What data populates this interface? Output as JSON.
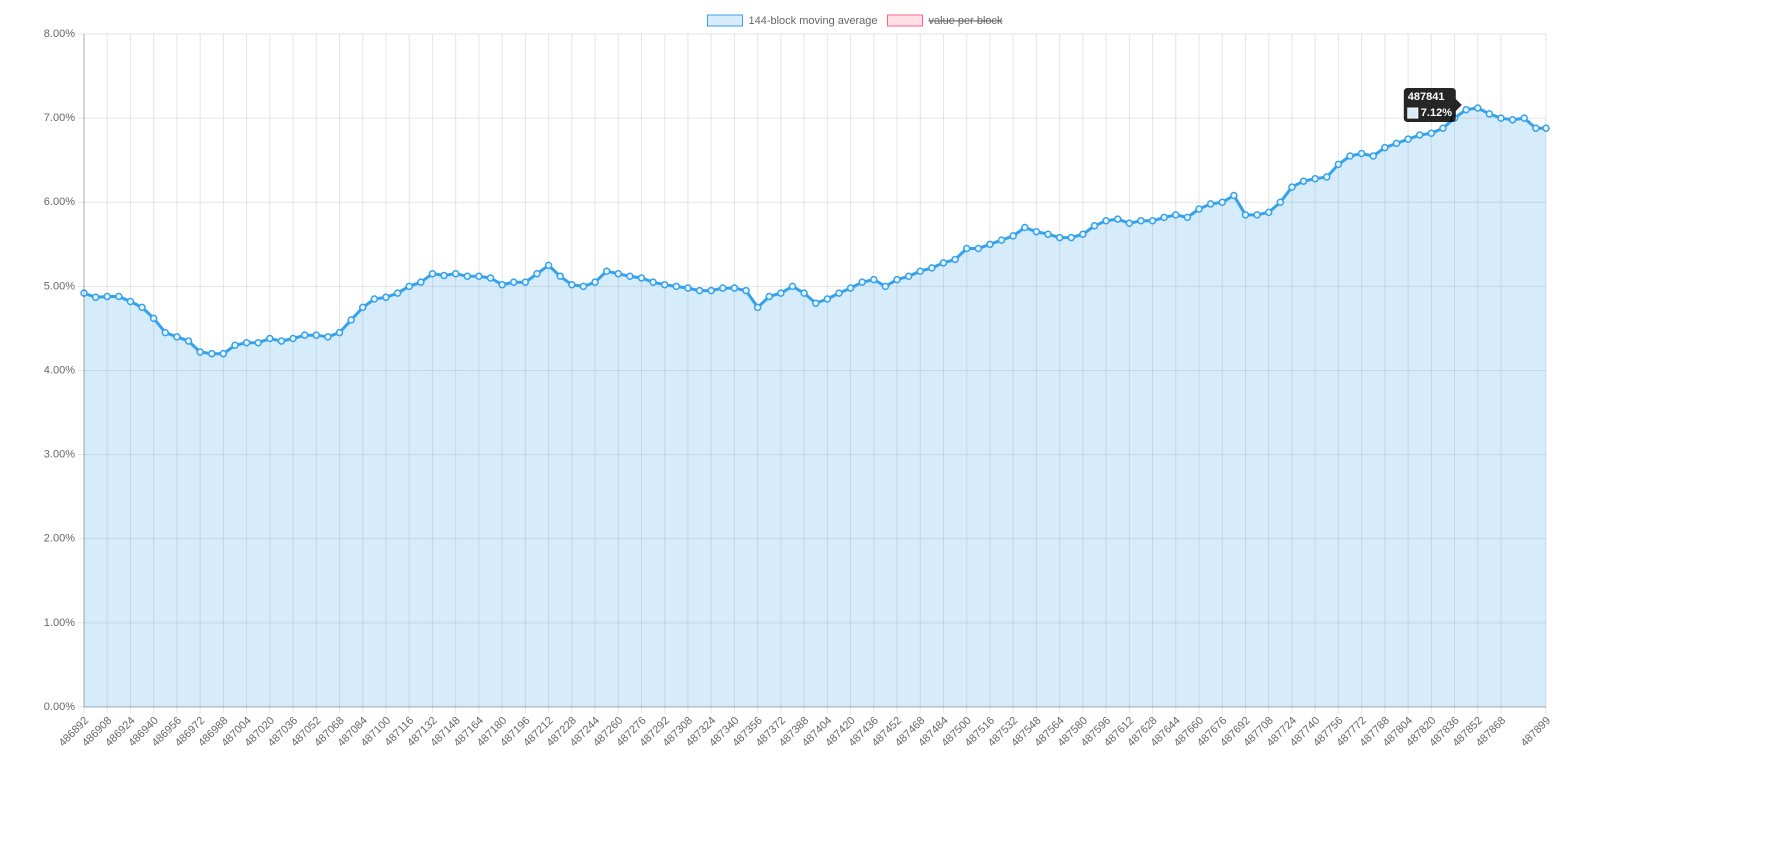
{
  "chart_data": {
    "type": "area",
    "x": [
      486892,
      486900,
      486908,
      486916,
      486924,
      486932,
      486940,
      486948,
      486956,
      486964,
      486972,
      486980,
      486988,
      486996,
      487004,
      487012,
      487020,
      487028,
      487036,
      487044,
      487052,
      487060,
      487068,
      487076,
      487084,
      487092,
      487100,
      487108,
      487116,
      487124,
      487132,
      487140,
      487148,
      487156,
      487164,
      487172,
      487180,
      487188,
      487196,
      487204,
      487212,
      487220,
      487228,
      487236,
      487244,
      487252,
      487260,
      487268,
      487276,
      487284,
      487292,
      487300,
      487308,
      487316,
      487324,
      487332,
      487340,
      487348,
      487356,
      487364,
      487372,
      487380,
      487388,
      487396,
      487404,
      487412,
      487420,
      487428,
      487436,
      487444,
      487452,
      487460,
      487468,
      487476,
      487484,
      487492,
      487500,
      487508,
      487516,
      487524,
      487532,
      487540,
      487548,
      487556,
      487564,
      487572,
      487580,
      487588,
      487596,
      487604,
      487612,
      487620,
      487628,
      487636,
      487644,
      487652,
      487660,
      487668,
      487676,
      487684,
      487692,
      487700,
      487708,
      487716,
      487724,
      487732,
      487740,
      487748,
      487756,
      487764,
      487772,
      487780,
      487788,
      487796,
      487804,
      487812,
      487820,
      487828,
      487836,
      487844,
      487852,
      487860,
      487868,
      487876,
      487884,
      487892,
      487899
    ],
    "series": [
      {
        "name": "144-block moving average",
        "color": "#36a2eb",
        "values": [
          4.92,
          4.87,
          4.88,
          4.88,
          4.82,
          4.75,
          4.62,
          4.45,
          4.4,
          4.35,
          4.22,
          4.2,
          4.2,
          4.3,
          4.33,
          4.33,
          4.38,
          4.35,
          4.38,
          4.42,
          4.42,
          4.4,
          4.45,
          4.6,
          4.75,
          4.85,
          4.87,
          4.92,
          5.0,
          5.05,
          5.15,
          5.13,
          5.15,
          5.12,
          5.12,
          5.1,
          5.02,
          5.05,
          5.05,
          5.15,
          5.25,
          5.12,
          5.02,
          5.0,
          5.05,
          5.18,
          5.15,
          5.12,
          5.1,
          5.05,
          5.02,
          5.0,
          4.98,
          4.95,
          4.95,
          4.98,
          4.98,
          4.95,
          4.75,
          4.88,
          4.92,
          5.0,
          4.92,
          4.8,
          4.85,
          4.92,
          4.98,
          5.05,
          5.08,
          5.0,
          5.08,
          5.12,
          5.18,
          5.22,
          5.28,
          5.32,
          5.45,
          5.45,
          5.5,
          5.55,
          5.6,
          5.7,
          5.65,
          5.62,
          5.58,
          5.58,
          5.62,
          5.72,
          5.78,
          5.8,
          5.75,
          5.78,
          5.78,
          5.82,
          5.85,
          5.82,
          5.92,
          5.98,
          6.0,
          6.08,
          5.85,
          5.85,
          5.88,
          6.0,
          6.18,
          6.25,
          6.28,
          6.3,
          6.45,
          6.55,
          6.58,
          6.55,
          6.65,
          6.7,
          6.75,
          6.8,
          6.82,
          6.88,
          7.0,
          7.1,
          7.12,
          7.05,
          7.0,
          6.98,
          7.0,
          6.88,
          6.88
        ]
      },
      {
        "name": "value per block",
        "color": "#ff6384",
        "hidden": true
      }
    ],
    "xlim": [
      486892,
      487899
    ],
    "xticks": [
      486892,
      486908,
      486924,
      486940,
      486956,
      486972,
      486988,
      487004,
      487020,
      487036,
      487052,
      487068,
      487084,
      487100,
      487116,
      487132,
      487148,
      487164,
      487180,
      487196,
      487212,
      487228,
      487244,
      487260,
      487276,
      487292,
      487308,
      487324,
      487340,
      487356,
      487372,
      487388,
      487404,
      487420,
      487436,
      487452,
      487468,
      487484,
      487500,
      487516,
      487532,
      487548,
      487564,
      487580,
      487596,
      487612,
      487628,
      487644,
      487660,
      487676,
      487692,
      487708,
      487724,
      487740,
      487756,
      487772,
      487788,
      487804,
      487820,
      487836,
      487852,
      487868,
      487899
    ],
    "ylim": [
      0,
      8
    ],
    "yticks": [
      {
        "value": 0,
        "label": "0.00%"
      },
      {
        "value": 1,
        "label": "1.00%"
      },
      {
        "value": 2,
        "label": "2.00%"
      },
      {
        "value": 3,
        "label": "3.00%"
      },
      {
        "value": 4,
        "label": "4.00%"
      },
      {
        "value": 5,
        "label": "5.00%"
      },
      {
        "value": 6,
        "label": "6.00%"
      },
      {
        "value": 7,
        "label": "7.00%"
      },
      {
        "value": 8,
        "label": "8.00%"
      }
    ],
    "grid": true,
    "legend": "top",
    "tooltip": {
      "title": "487841",
      "x": 487841,
      "value": 7.12,
      "value_label": "7.12%"
    }
  }
}
